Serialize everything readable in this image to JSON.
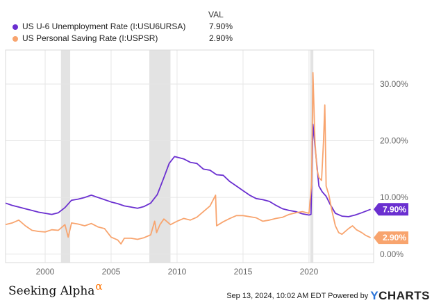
{
  "legend": {
    "header": "VAL",
    "items": [
      {
        "label": "US U-6 Unemployment Rate (I:USU6URSA)",
        "value": "7.90%",
        "color": "#6a2fd0"
      },
      {
        "label": "US Personal Saving Rate (I:USPSR)",
        "value": "2.90%",
        "color": "#f8a46e"
      }
    ]
  },
  "chart_data": {
    "type": "line",
    "x_ticks": [
      "2000",
      "2005",
      "2010",
      "2015",
      "2020"
    ],
    "y_ticks": [
      "0.00%",
      "10.00%",
      "20.00%",
      "30.00%"
    ],
    "xlim": [
      1997.0,
      2024.9
    ],
    "ylim": [
      -1.5,
      36
    ],
    "grid": true,
    "recessions": [
      [
        2001.2,
        2001.9
      ],
      [
        2007.9,
        2009.5
      ],
      [
        2020.1,
        2020.33
      ]
    ],
    "end_labels": [
      {
        "series": "US U-6 Unemployment Rate (I:USU6URSA)",
        "text": "7.90%",
        "color": "#6a2fd0"
      },
      {
        "series": "US Personal Saving Rate (I:USPSR)",
        "text": "2.90%",
        "color": "#f8a46e"
      }
    ],
    "series": [
      {
        "name": "US U-6 Unemployment Rate (I:USU6URSA)",
        "color": "#6a2fd0",
        "points": [
          [
            1997.0,
            9.0
          ],
          [
            1997.5,
            8.6
          ],
          [
            1998.0,
            8.3
          ],
          [
            1998.5,
            8.0
          ],
          [
            1999.0,
            7.7
          ],
          [
            1999.5,
            7.4
          ],
          [
            2000.0,
            7.2
          ],
          [
            2000.5,
            7.0
          ],
          [
            2001.0,
            7.3
          ],
          [
            2001.5,
            8.2
          ],
          [
            2002.0,
            9.5
          ],
          [
            2002.5,
            9.7
          ],
          [
            2003.0,
            10.0
          ],
          [
            2003.5,
            10.4
          ],
          [
            2004.0,
            10.0
          ],
          [
            2004.5,
            9.6
          ],
          [
            2005.0,
            9.2
          ],
          [
            2005.5,
            8.9
          ],
          [
            2006.0,
            8.5
          ],
          [
            2006.5,
            8.3
          ],
          [
            2007.0,
            8.1
          ],
          [
            2007.5,
            8.4
          ],
          [
            2008.0,
            9.0
          ],
          [
            2008.5,
            10.5
          ],
          [
            2009.0,
            13.5
          ],
          [
            2009.4,
            16.0
          ],
          [
            2009.8,
            17.2
          ],
          [
            2010.0,
            17.1
          ],
          [
            2010.5,
            16.8
          ],
          [
            2011.0,
            16.2
          ],
          [
            2011.5,
            16.0
          ],
          [
            2012.0,
            15.0
          ],
          [
            2012.5,
            14.8
          ],
          [
            2013.0,
            14.0
          ],
          [
            2013.5,
            13.9
          ],
          [
            2014.0,
            12.8
          ],
          [
            2014.5,
            12.0
          ],
          [
            2015.0,
            11.2
          ],
          [
            2015.5,
            10.4
          ],
          [
            2016.0,
            9.8
          ],
          [
            2016.5,
            9.6
          ],
          [
            2017.0,
            9.3
          ],
          [
            2017.5,
            8.6
          ],
          [
            2018.0,
            8.0
          ],
          [
            2018.5,
            7.7
          ],
          [
            2019.0,
            7.5
          ],
          [
            2019.5,
            7.1
          ],
          [
            2020.0,
            6.9
          ],
          [
            2020.15,
            7.0
          ],
          [
            2020.3,
            22.9
          ],
          [
            2020.5,
            18.0
          ],
          [
            2020.75,
            12.0
          ],
          [
            2021.0,
            11.0
          ],
          [
            2021.3,
            10.2
          ],
          [
            2021.6,
            8.8
          ],
          [
            2022.0,
            7.2
          ],
          [
            2022.5,
            6.7
          ],
          [
            2023.0,
            6.6
          ],
          [
            2023.5,
            6.9
          ],
          [
            2024.0,
            7.3
          ],
          [
            2024.67,
            7.9
          ]
        ]
      },
      {
        "name": "US Personal Saving Rate (I:USPSR)",
        "color": "#f8a46e",
        "points": [
          [
            1997.0,
            5.2
          ],
          [
            1997.5,
            5.5
          ],
          [
            1998.0,
            6.0
          ],
          [
            1998.5,
            5.0
          ],
          [
            1999.0,
            4.2
          ],
          [
            1999.5,
            4.0
          ],
          [
            2000.0,
            3.9
          ],
          [
            2000.5,
            4.3
          ],
          [
            2001.0,
            4.2
          ],
          [
            2001.5,
            5.2
          ],
          [
            2001.75,
            3.0
          ],
          [
            2002.0,
            5.5
          ],
          [
            2002.5,
            5.3
          ],
          [
            2003.0,
            5.0
          ],
          [
            2003.5,
            5.4
          ],
          [
            2004.0,
            4.8
          ],
          [
            2004.5,
            4.5
          ],
          [
            2005.0,
            3.0
          ],
          [
            2005.5,
            2.5
          ],
          [
            2005.75,
            1.8
          ],
          [
            2006.0,
            2.8
          ],
          [
            2006.5,
            2.8
          ],
          [
            2007.0,
            2.6
          ],
          [
            2007.5,
            2.9
          ],
          [
            2008.0,
            3.4
          ],
          [
            2008.3,
            5.8
          ],
          [
            2008.45,
            3.8
          ],
          [
            2008.7,
            5.2
          ],
          [
            2009.0,
            6.2
          ],
          [
            2009.5,
            5.2
          ],
          [
            2010.0,
            5.8
          ],
          [
            2010.5,
            6.3
          ],
          [
            2011.0,
            6.0
          ],
          [
            2011.5,
            6.5
          ],
          [
            2012.0,
            7.5
          ],
          [
            2012.5,
            8.5
          ],
          [
            2012.92,
            10.4
          ],
          [
            2013.0,
            5.0
          ],
          [
            2013.5,
            5.7
          ],
          [
            2014.0,
            6.3
          ],
          [
            2014.5,
            6.8
          ],
          [
            2015.0,
            6.8
          ],
          [
            2015.5,
            6.6
          ],
          [
            2016.0,
            6.4
          ],
          [
            2016.5,
            5.8
          ],
          [
            2017.0,
            6.0
          ],
          [
            2017.5,
            6.3
          ],
          [
            2018.0,
            6.5
          ],
          [
            2018.5,
            7.0
          ],
          [
            2019.0,
            7.3
          ],
          [
            2019.5,
            7.5
          ],
          [
            2020.0,
            7.2
          ],
          [
            2020.2,
            12.5
          ],
          [
            2020.3,
            32.0
          ],
          [
            2020.45,
            20.0
          ],
          [
            2020.6,
            15.0
          ],
          [
            2020.75,
            13.5
          ],
          [
            2020.95,
            13.0
          ],
          [
            2021.1,
            19.8
          ],
          [
            2021.2,
            26.3
          ],
          [
            2021.3,
            12.0
          ],
          [
            2021.5,
            10.5
          ],
          [
            2021.75,
            7.5
          ],
          [
            2022.0,
            5.0
          ],
          [
            2022.25,
            3.8
          ],
          [
            2022.5,
            3.5
          ],
          [
            2023.0,
            4.5
          ],
          [
            2023.3,
            5.0
          ],
          [
            2023.6,
            4.3
          ],
          [
            2024.0,
            3.8
          ],
          [
            2024.3,
            3.3
          ],
          [
            2024.67,
            2.9
          ]
        ]
      }
    ]
  },
  "footer": {
    "brand_left": "Seeking Alpha",
    "brand_left_symbol": "α",
    "timestamp": "Sep 13, 2024, 10:02 AM EDT Powered by",
    "brand_right_y": "Y",
    "brand_right_rest": "CHARTS"
  }
}
